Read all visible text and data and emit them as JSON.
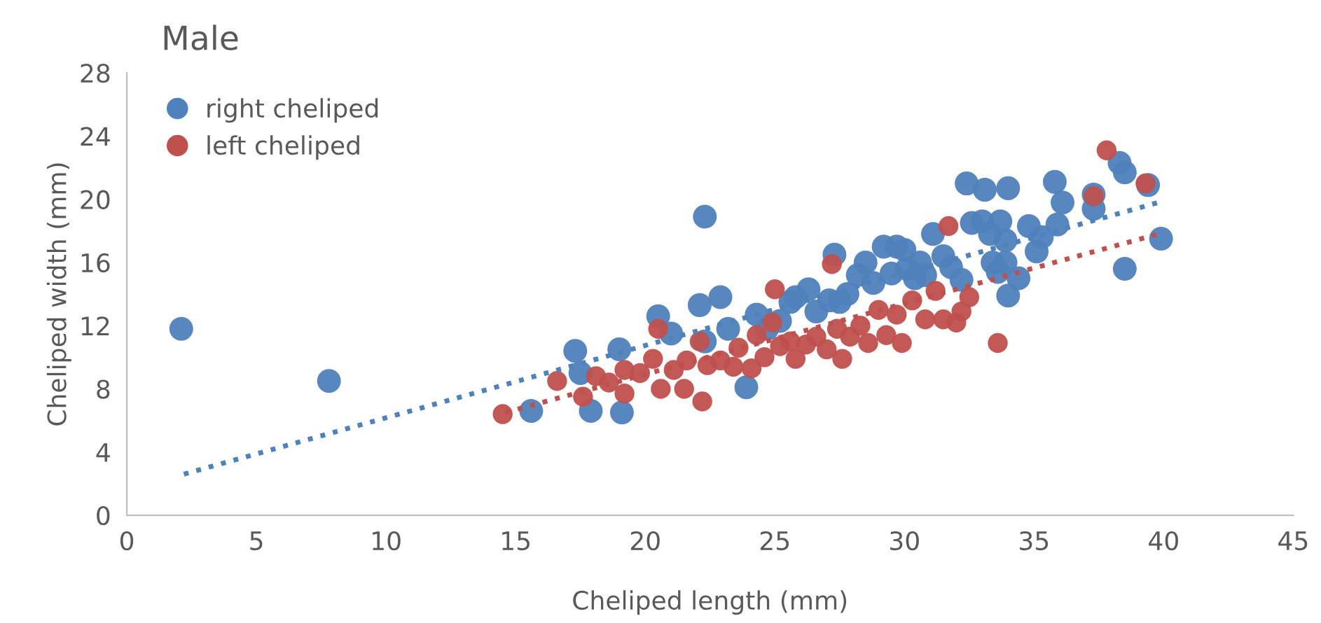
{
  "chart_data": {
    "type": "scatter",
    "title": "Male",
    "xlabel": "Cheliped length (mm)",
    "ylabel": "Cheliped width (mm)",
    "xlim": [
      0,
      45
    ],
    "xticks": [
      0,
      5,
      10,
      15,
      20,
      25,
      30,
      35,
      40,
      45
    ],
    "ylim": [
      0,
      28
    ],
    "yticks": [
      0,
      4,
      8,
      12,
      16,
      20,
      24,
      28
    ],
    "grid": false,
    "legend": "top left",
    "marker": "circle",
    "series": [
      {
        "name": "right cheliped",
        "color": "#4f81bd",
        "x": [
          2.1,
          7.8,
          15.6,
          17.3,
          17.5,
          17.9,
          19.0,
          19.1,
          20.5,
          21.0,
          22.1,
          22.3,
          22.3,
          22.9,
          23.2,
          23.9,
          24.3,
          24.7,
          25.2,
          25.6,
          25.8,
          26.3,
          26.6,
          27.1,
          27.3,
          27.5,
          27.8,
          28.2,
          28.5,
          28.8,
          29.2,
          29.5,
          29.7,
          30.0,
          30.1,
          30.4,
          30.6,
          30.8,
          31.1,
          31.5,
          31.8,
          32.2,
          32.4,
          32.6,
          33.0,
          33.1,
          33.3,
          33.4,
          33.6,
          33.7,
          33.9,
          33.9,
          34.0,
          34.0,
          34.4,
          34.8,
          35.1,
          35.3,
          35.8,
          35.9,
          36.1,
          37.3,
          37.3,
          38.3,
          38.5,
          38.5,
          39.4,
          39.9
        ],
        "values": [
          11.8,
          8.5,
          6.6,
          10.4,
          9.0,
          6.6,
          10.5,
          6.5,
          12.6,
          11.5,
          13.3,
          18.9,
          11.0,
          13.8,
          11.8,
          8.1,
          12.7,
          11.8,
          12.3,
          13.5,
          13.8,
          14.3,
          12.9,
          13.6,
          16.5,
          13.5,
          14.0,
          15.2,
          16.0,
          14.7,
          17.0,
          15.3,
          17.0,
          16.8,
          15.6,
          15.0,
          16.0,
          15.2,
          17.8,
          16.4,
          15.7,
          14.9,
          21.0,
          18.5,
          18.6,
          20.6,
          17.8,
          16.0,
          15.4,
          18.6,
          17.4,
          16.0,
          20.7,
          13.9,
          15.0,
          18.3,
          16.7,
          17.6,
          21.1,
          18.4,
          19.8,
          20.3,
          19.4,
          22.3,
          21.7,
          15.6,
          20.9,
          17.5
        ]
      },
      {
        "name": "left cheliped",
        "color": "#c0504d",
        "x": [
          14.5,
          16.6,
          17.6,
          18.1,
          18.6,
          19.2,
          19.2,
          19.8,
          20.3,
          20.5,
          20.6,
          21.1,
          21.6,
          21.5,
          22.1,
          22.2,
          22.4,
          22.9,
          23.4,
          23.6,
          24.1,
          24.3,
          24.6,
          24.9,
          25.0,
          25.2,
          25.6,
          25.8,
          26.2,
          26.6,
          27.0,
          27.2,
          27.4,
          27.6,
          27.9,
          28.3,
          28.6,
          29.0,
          29.3,
          29.7,
          29.9,
          30.3,
          30.8,
          31.2,
          31.5,
          31.7,
          32.2,
          32.5,
          32.0,
          33.6,
          37.3,
          37.8,
          39.3
        ],
        "values": [
          6.4,
          8.5,
          7.5,
          8.8,
          8.4,
          7.7,
          9.2,
          9.0,
          9.9,
          11.8,
          8.0,
          9.2,
          9.8,
          8.0,
          11.0,
          7.2,
          9.5,
          9.8,
          9.4,
          10.6,
          9.3,
          11.4,
          10.0,
          12.2,
          14.3,
          10.7,
          11.0,
          9.9,
          10.8,
          11.3,
          10.5,
          15.9,
          11.8,
          9.9,
          11.3,
          12.0,
          10.9,
          13.0,
          11.4,
          12.7,
          10.9,
          13.6,
          12.4,
          14.2,
          12.4,
          18.3,
          12.9,
          13.8,
          12.2,
          10.9,
          20.2,
          23.1,
          21.0
        ]
      },
      {
        "type": "line",
        "marker": "none",
        "line_style": "dotted",
        "color": "#4f81bd",
        "x": [
          2.2,
          39.8
        ],
        "values": [
          2.6,
          19.8
        ]
      },
      {
        "type": "line",
        "marker": "none",
        "line_style": "dotted",
        "color": "#c0504d",
        "x": [
          14.6,
          39.8
        ],
        "values": [
          6.5,
          17.8
        ]
      }
    ]
  }
}
